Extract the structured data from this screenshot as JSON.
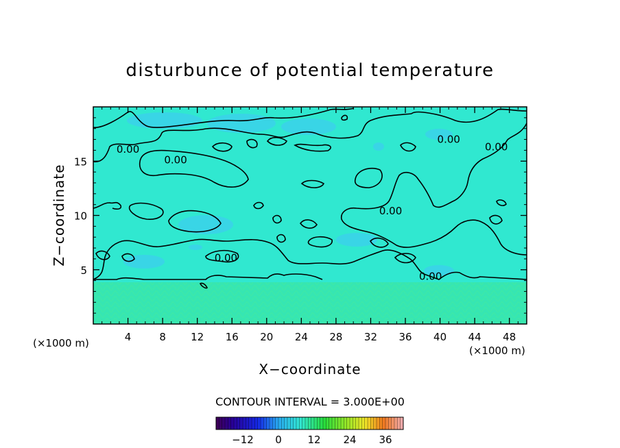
{
  "chart_data": {
    "type": "heatmap",
    "title": "disturbunce of potential temperature",
    "xlabel": "X−coordinate",
    "ylabel": "Z−coordinate",
    "x_unit_left": "(×1000 m)",
    "x_unit_right": "(×1000 m)",
    "xlim": [
      0,
      50
    ],
    "ylim": [
      0,
      20
    ],
    "xticks": [
      "4",
      "8",
      "12",
      "16",
      "20",
      "24",
      "28",
      "32",
      "36",
      "40",
      "44",
      "48"
    ],
    "yticks": [
      "5",
      "10",
      "15"
    ],
    "xtick_values": [
      4,
      8,
      12,
      16,
      20,
      24,
      28,
      32,
      36,
      40,
      44,
      48
    ],
    "ytick_values": [
      5,
      10,
      15
    ],
    "contour_interval_text": "CONTOUR INTERVAL = 3.000E+00",
    "contour_labels": [
      {
        "text": "0.00",
        "x": 4.0,
        "z": 16.1
      },
      {
        "text": "0.00",
        "x": 9.5,
        "z": 15.1
      },
      {
        "text": "0.00",
        "x": 41.0,
        "z": 17.0
      },
      {
        "text": "0.00",
        "x": 46.5,
        "z": 16.3
      },
      {
        "text": "0.00",
        "x": 34.3,
        "z": 10.4
      },
      {
        "text": "0.00",
        "x": 15.3,
        "z": 6.1
      },
      {
        "text": "0.00",
        "x": 38.9,
        "z": 4.4
      }
    ],
    "colorbar": {
      "ticks": [
        "−12",
        "0",
        "12",
        "24",
        "36"
      ],
      "tick_values": [
        -12,
        0,
        12,
        24,
        36
      ],
      "range": [
        -21,
        42
      ]
    },
    "field_colors": {
      "upper_background": "#30e8d0",
      "lower_layer": "#36e6b2",
      "weak_negative": "#3ccfee"
    }
  }
}
